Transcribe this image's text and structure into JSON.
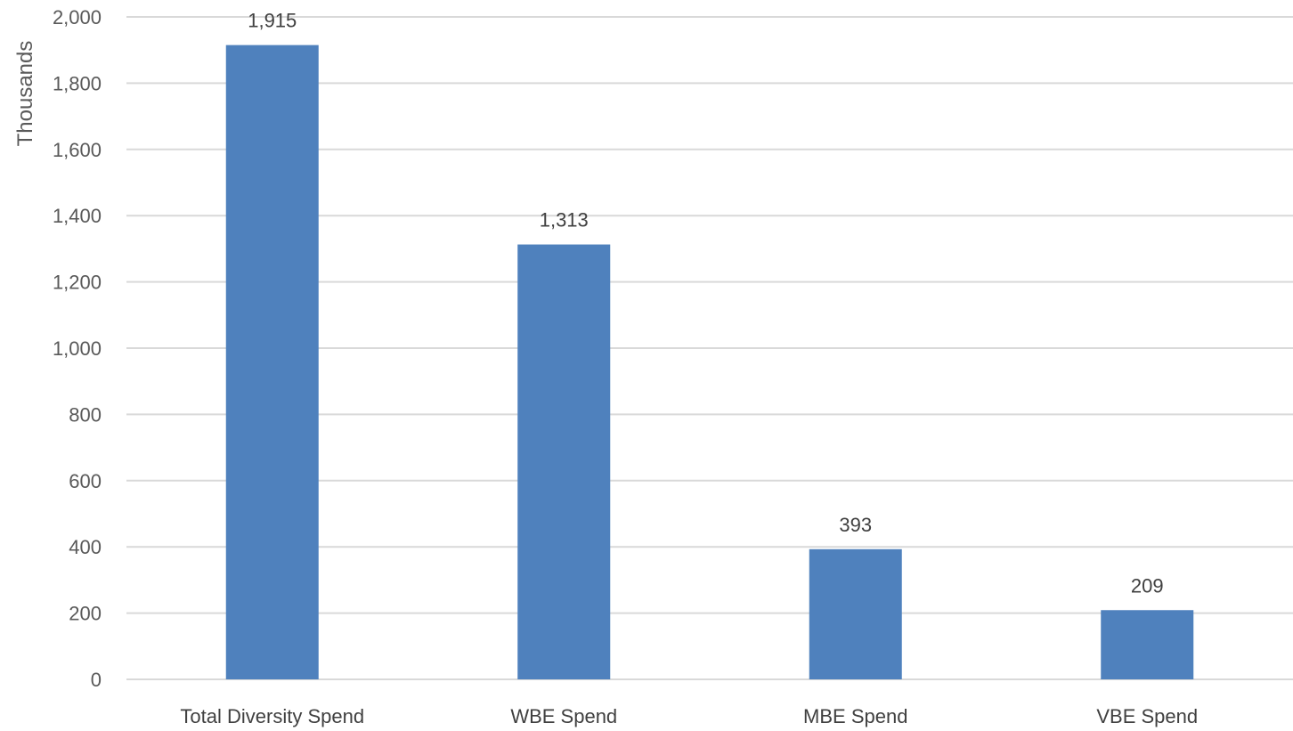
{
  "chart_data": {
    "type": "bar",
    "title": "",
    "xlabel": "",
    "ylabel": "Thousands",
    "categories": [
      "Total Diversity Spend",
      "WBE Spend",
      "MBE Spend",
      "VBE Spend"
    ],
    "values": [
      1915,
      1313,
      393,
      209
    ],
    "data_labels": [
      "1,915",
      "1,313",
      "393",
      "209"
    ],
    "ylim": [
      0,
      2000
    ],
    "yticks": [
      0,
      200,
      400,
      600,
      800,
      1000,
      1200,
      1400,
      1600,
      1800,
      2000
    ],
    "ytick_labels": [
      "0",
      "200",
      "400",
      "600",
      "800",
      "1,000",
      "1,200",
      "1,400",
      "1,600",
      "1,800",
      "2,000"
    ],
    "grid": true,
    "legend": "none",
    "colors": {
      "bar": "#4f81bd"
    }
  }
}
